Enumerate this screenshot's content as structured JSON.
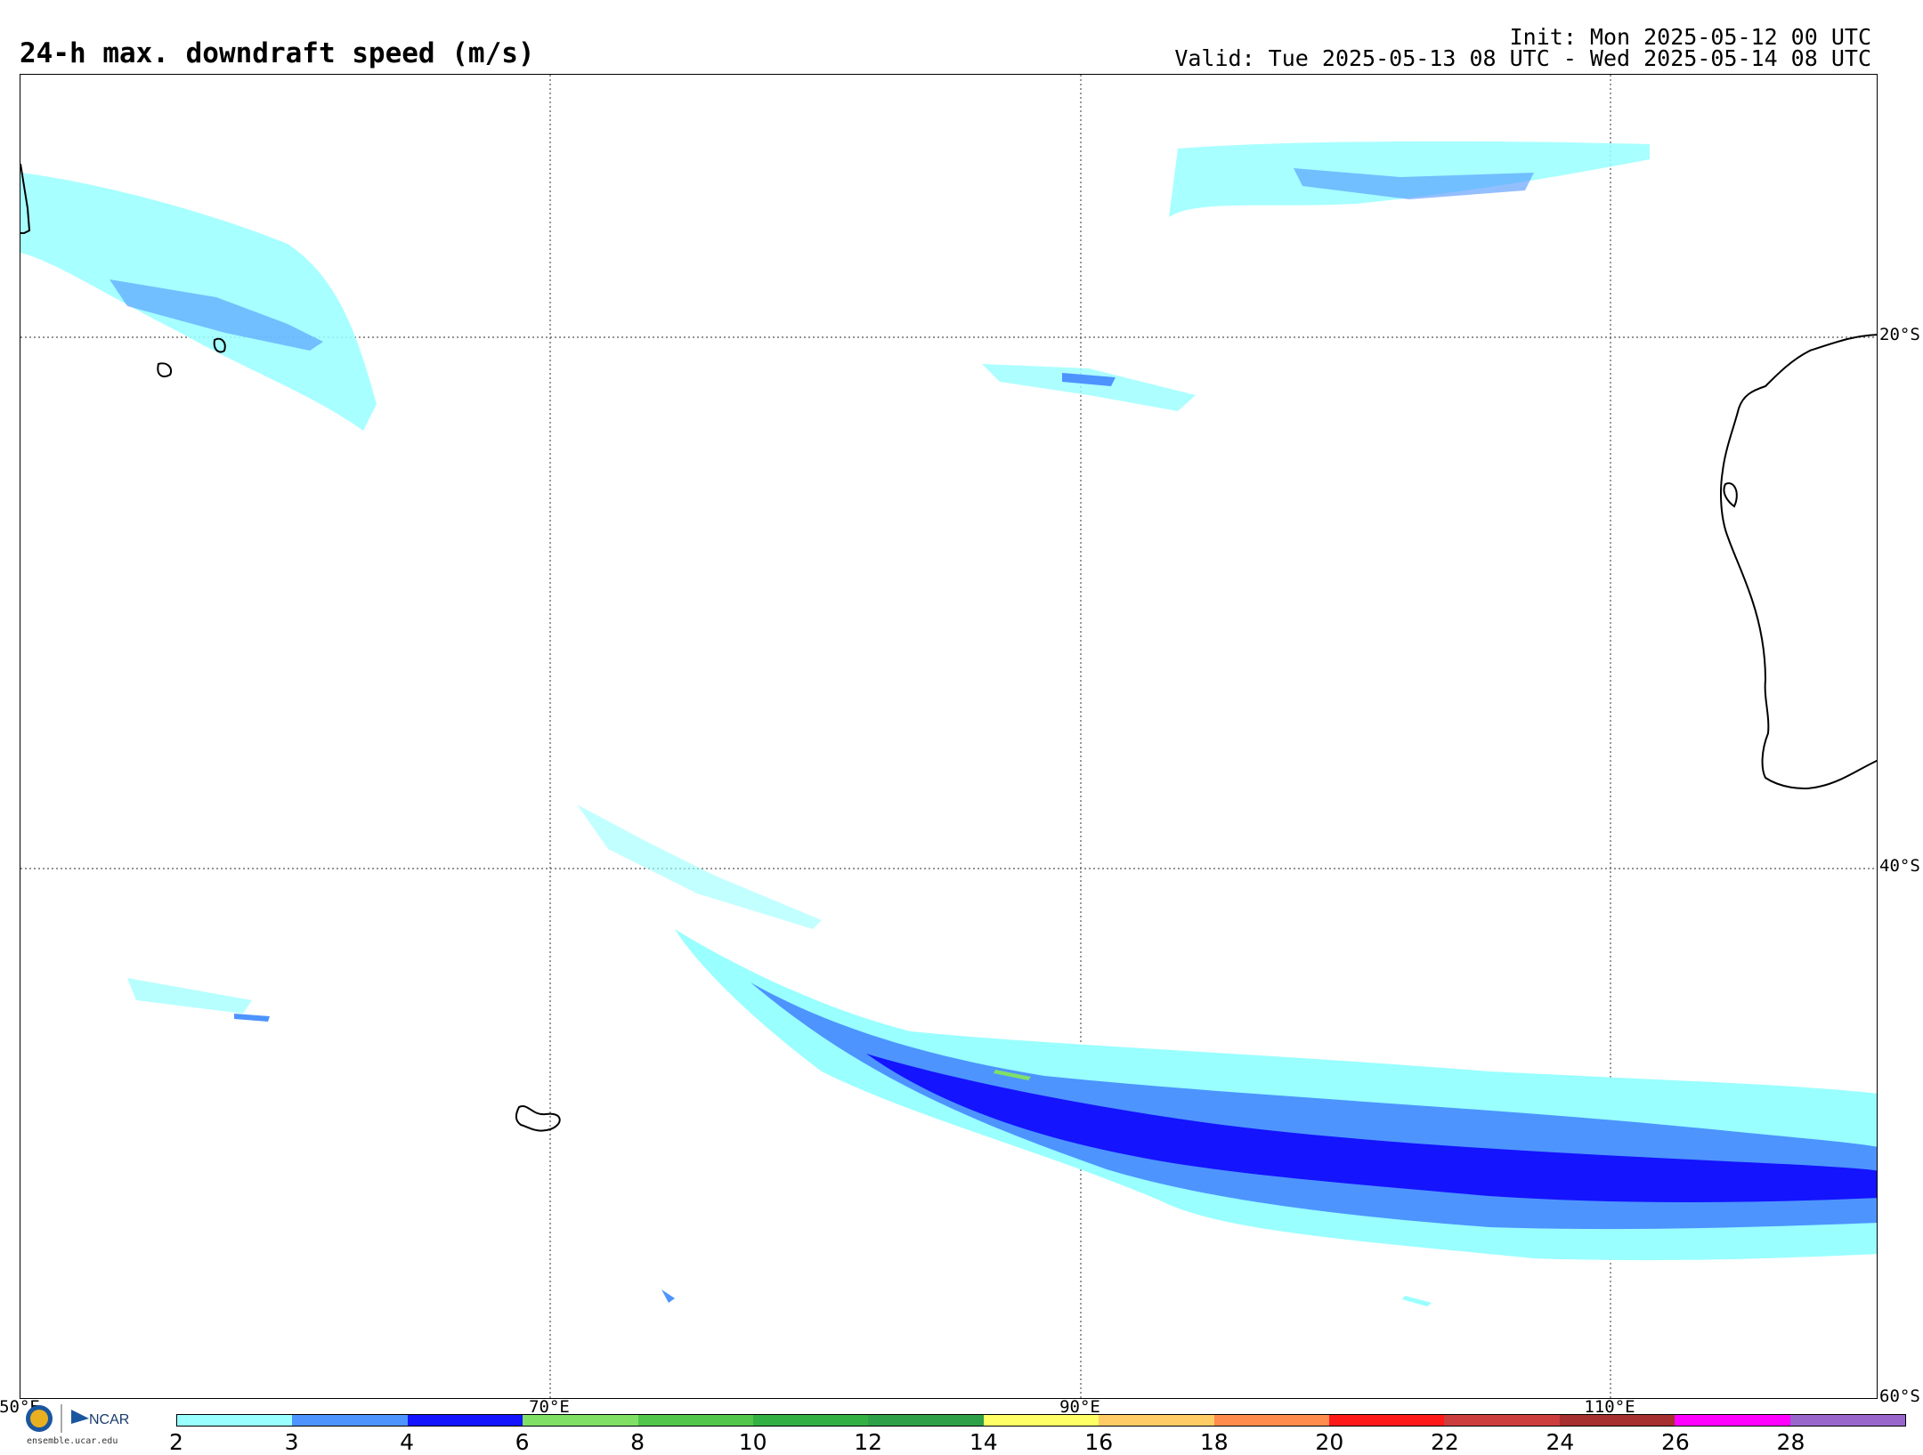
{
  "header": {
    "title": "24-h max. downdraft speed (m/s)",
    "init": "Init: Mon 2025-05-12 00 UTC",
    "valid": "Valid: Tue 2025-05-13 08 UTC - Wed 2025-05-14 08 UTC"
  },
  "map": {
    "lat_labels": [
      "20°S",
      "40°S",
      "60°S"
    ],
    "lon_labels": [
      "50°E",
      "70°E",
      "90°E",
      "110°E"
    ],
    "lon_range": [
      50,
      120
    ],
    "lat_range": [
      -60,
      -10
    ]
  },
  "colorbar": {
    "ticks": [
      "2",
      "3",
      "4",
      "6",
      "8",
      "10",
      "12",
      "14",
      "16",
      "18",
      "20",
      "22",
      "24",
      "26",
      "28"
    ],
    "colors": [
      "#99ffff",
      "#4d94ff",
      "#1414ff",
      "#80e066",
      "#52c54b",
      "#33b042",
      "#2ea048",
      "#ffff66",
      "#ffcc66",
      "#ff8c4d",
      "#ff1a1a",
      "#cc3d3d",
      "#a62f2f",
      "#ff00ff",
      "#9966cc"
    ]
  },
  "branding": {
    "logo_text": "NCAR",
    "url": "ensemble.ucar.edu"
  }
}
